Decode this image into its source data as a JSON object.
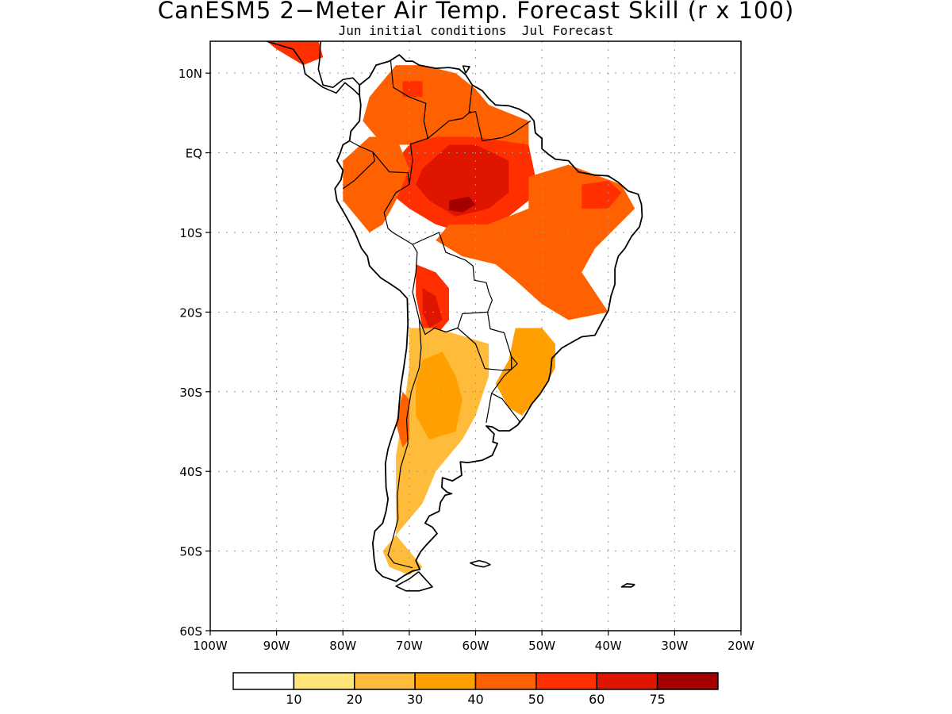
{
  "title": "CanESM5 2−Meter Air Temp. Forecast Skill (r x 100)",
  "subtitle": "Jun initial conditions  Jul Forecast",
  "map": {
    "projection": "lat-lon",
    "lon_range": [
      -100,
      -20
    ],
    "lat_range": [
      -60,
      14
    ],
    "grid": "dotted",
    "lat_ticks": [
      {
        "value": 10,
        "label": "10N"
      },
      {
        "value": 0,
        "label": "EQ"
      },
      {
        "value": -10,
        "label": "10S"
      },
      {
        "value": -20,
        "label": "20S"
      },
      {
        "value": -30,
        "label": "30S"
      },
      {
        "value": -40,
        "label": "40S"
      },
      {
        "value": -50,
        "label": "50S"
      },
      {
        "value": -60,
        "label": "60S"
      }
    ],
    "lon_ticks": [
      {
        "value": -100,
        "label": "100W"
      },
      {
        "value": -90,
        "label": "90W"
      },
      {
        "value": -80,
        "label": "80W"
      },
      {
        "value": -70,
        "label": "70W"
      },
      {
        "value": -60,
        "label": "60W"
      },
      {
        "value": -50,
        "label": "50W"
      },
      {
        "value": -40,
        "label": "40W"
      },
      {
        "value": -30,
        "label": "30W"
      },
      {
        "value": -20,
        "label": "20W"
      }
    ]
  },
  "colorbar": {
    "colors": [
      "#ffffff",
      "#ffe479",
      "#ffbb3a",
      "#ff9f00",
      "#ff6000",
      "#ff2f00",
      "#e01500",
      "#a50000"
    ],
    "labels": [
      "10",
      "20",
      "30",
      "40",
      "50",
      "60",
      "75"
    ]
  },
  "skill_regions": [
    {
      "name": "amazon",
      "level": 50,
      "pts": [
        [
          -72,
          -1
        ],
        [
          -68,
          3
        ],
        [
          -62,
          3
        ],
        [
          -56,
          3
        ],
        [
          -52,
          1
        ],
        [
          -51,
          -3
        ],
        [
          -52,
          -6
        ],
        [
          -55,
          -8
        ],
        [
          -58,
          -9
        ],
        [
          -62,
          -10
        ],
        [
          -66,
          -9
        ],
        [
          -70,
          -7
        ],
        [
          -73,
          -5
        ],
        [
          -73,
          -2
        ]
      ]
    },
    {
      "name": "amazon-core",
      "level": 60,
      "pts": [
        [
          -68,
          -2
        ],
        [
          -64,
          1
        ],
        [
          -60,
          1
        ],
        [
          -55,
          -1
        ],
        [
          -55,
          -5
        ],
        [
          -58,
          -7
        ],
        [
          -63,
          -8
        ],
        [
          -67,
          -6
        ],
        [
          -69,
          -4
        ]
      ]
    },
    {
      "name": "amazon-peak",
      "level": 75,
      "pts": [
        [
          -64,
          -6
        ],
        [
          -61,
          -5.5
        ],
        [
          -60,
          -6.5
        ],
        [
          -62,
          -7.5
        ],
        [
          -64,
          -7.2
        ]
      ]
    },
    {
      "name": "northeast-brazil",
      "level": 40,
      "pts": [
        [
          -52,
          -3
        ],
        [
          -46,
          -1.5
        ],
        [
          -38,
          -4
        ],
        [
          -36,
          -7
        ],
        [
          -42,
          -12
        ],
        [
          -44,
          -15
        ],
        [
          -40,
          -20
        ],
        [
          -46,
          -21
        ],
        [
          -50,
          -19
        ],
        [
          -54,
          -16
        ],
        [
          -57,
          -14
        ],
        [
          -62,
          -13
        ],
        [
          -66,
          -11
        ],
        [
          -64,
          -9
        ],
        [
          -58,
          -9
        ],
        [
          -52,
          -7
        ]
      ]
    },
    {
      "name": "northeast-brazil-hot",
      "level": 50,
      "pts": [
        [
          -44,
          -4
        ],
        [
          -40,
          -3.5
        ],
        [
          -38,
          -5
        ],
        [
          -40,
          -7
        ],
        [
          -44,
          -7
        ]
      ]
    },
    {
      "name": "bolivia",
      "level": 50,
      "pts": [
        [
          -69,
          -14
        ],
        [
          -66,
          -15
        ],
        [
          -64,
          -17
        ],
        [
          -64,
          -21
        ],
        [
          -66,
          -23
        ],
        [
          -68,
          -22
        ],
        [
          -69,
          -18
        ]
      ]
    },
    {
      "name": "bolivia-inner",
      "level": 60,
      "pts": [
        [
          -68,
          -17
        ],
        [
          -66,
          -18
        ],
        [
          -65,
          -21
        ],
        [
          -67,
          -22
        ],
        [
          -68,
          -20
        ]
      ]
    },
    {
      "name": "peru-ecuador",
      "level": 40,
      "pts": [
        [
          -80,
          -1
        ],
        [
          -76,
          2
        ],
        [
          -72,
          2
        ],
        [
          -70,
          -2
        ],
        [
          -72,
          -6
        ],
        [
          -74,
          -9
        ],
        [
          -76,
          -10
        ],
        [
          -80,
          -6
        ]
      ]
    },
    {
      "name": "colombia-venezuela",
      "level": 40,
      "pts": [
        [
          -76,
          7
        ],
        [
          -72,
          11
        ],
        [
          -68,
          11
        ],
        [
          -63,
          10
        ],
        [
          -60,
          8
        ],
        [
          -58,
          6
        ],
        [
          -55,
          5
        ],
        [
          -52,
          4
        ],
        [
          -52,
          1
        ],
        [
          -60,
          2
        ],
        [
          -66,
          2
        ],
        [
          -70,
          1
        ],
        [
          -74,
          1
        ],
        [
          -77,
          4
        ]
      ]
    },
    {
      "name": "colombia-hot",
      "level": 50,
      "pts": [
        [
          -71,
          9
        ],
        [
          -68,
          9
        ],
        [
          -68,
          7
        ],
        [
          -71,
          7
        ]
      ]
    },
    {
      "name": "argentina",
      "level": 20,
      "pts": [
        [
          -70,
          -22
        ],
        [
          -66,
          -22
        ],
        [
          -62,
          -23
        ],
        [
          -58,
          -24
        ],
        [
          -58,
          -28
        ],
        [
          -60,
          -33
        ],
        [
          -62,
          -36
        ],
        [
          -64,
          -38
        ],
        [
          -66,
          -40
        ],
        [
          -68,
          -44
        ],
        [
          -70,
          -46
        ],
        [
          -72,
          -48
        ],
        [
          -72,
          -44
        ],
        [
          -72,
          -38
        ],
        [
          -71,
          -33
        ],
        [
          -70,
          -27
        ]
      ]
    },
    {
      "name": "argentina-mid",
      "level": 30,
      "pts": [
        [
          -68,
          -26
        ],
        [
          -65,
          -25
        ],
        [
          -63,
          -28
        ],
        [
          -62,
          -31
        ],
        [
          -63,
          -35
        ],
        [
          -67,
          -36
        ],
        [
          -69,
          -33
        ],
        [
          -69,
          -29
        ]
      ]
    },
    {
      "name": "chile-coast",
      "level": 40,
      "pts": [
        [
          -71,
          -30
        ],
        [
          -70,
          -31
        ],
        [
          -70,
          -36
        ],
        [
          -71,
          -37
        ],
        [
          -72,
          -34
        ]
      ]
    },
    {
      "name": "southeast-brazil",
      "level": 30,
      "pts": [
        [
          -54,
          -22
        ],
        [
          -50,
          -22
        ],
        [
          -48,
          -24
        ],
        [
          -48,
          -27
        ],
        [
          -50,
          -30
        ],
        [
          -53,
          -33
        ],
        [
          -55,
          -32
        ],
        [
          -57,
          -29
        ],
        [
          -55,
          -26
        ]
      ]
    },
    {
      "name": "central-america",
      "level": 50,
      "pts": [
        [
          -93,
          15
        ],
        [
          -88,
          16
        ],
        [
          -84,
          15
        ],
        [
          -83,
          12
        ],
        [
          -86,
          11
        ],
        [
          -90,
          13
        ]
      ]
    },
    {
      "name": "patagonia-south",
      "level": 20,
      "pts": [
        [
          -72,
          -48
        ],
        [
          -70,
          -50
        ],
        [
          -68,
          -52
        ],
        [
          -70,
          -53
        ],
        [
          -73,
          -52
        ],
        [
          -74,
          -50
        ]
      ]
    }
  ]
}
